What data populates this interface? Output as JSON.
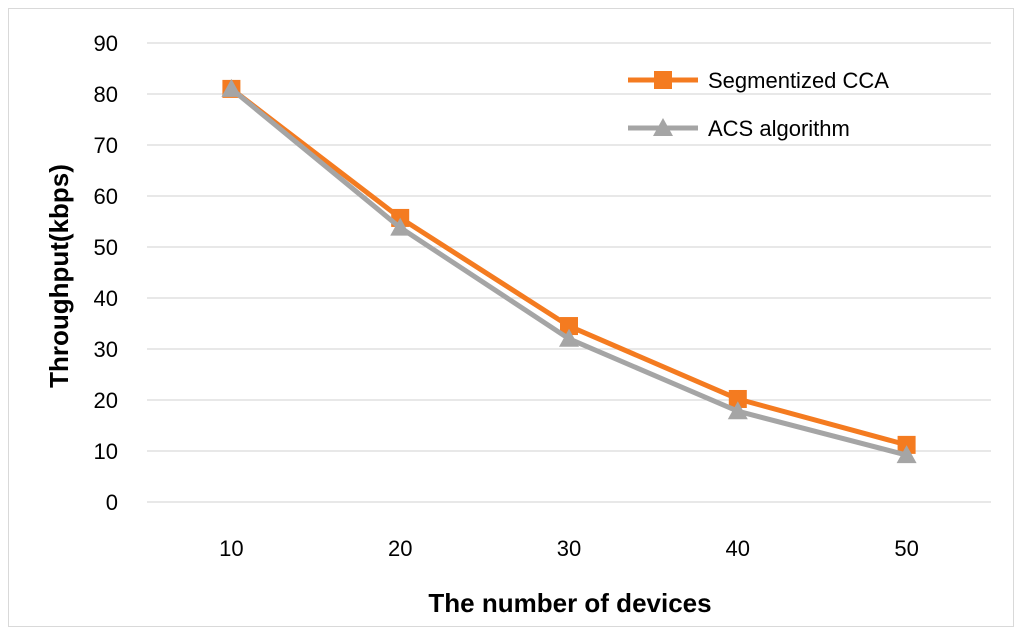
{
  "chart_data": {
    "type": "line",
    "title": "",
    "xlabel": "The number of devices",
    "ylabel": "Throughput(kbps)",
    "x": [
      10,
      20,
      30,
      40,
      50
    ],
    "ylim": [
      0,
      90
    ],
    "yticks": [
      0,
      10,
      20,
      30,
      40,
      50,
      60,
      70,
      80,
      90
    ],
    "grid": true,
    "legend_position": "top-right",
    "series": [
      {
        "name": "Segmentized CCA",
        "values": [
          81,
          55.7,
          34.5,
          20.2,
          11.2
        ],
        "color": "#f47b20",
        "marker": "square"
      },
      {
        "name": "ACS algorithm",
        "values": [
          81,
          53.8,
          32,
          17.8,
          9.2
        ],
        "color": "#a5a5a5",
        "marker": "triangle"
      }
    ]
  }
}
